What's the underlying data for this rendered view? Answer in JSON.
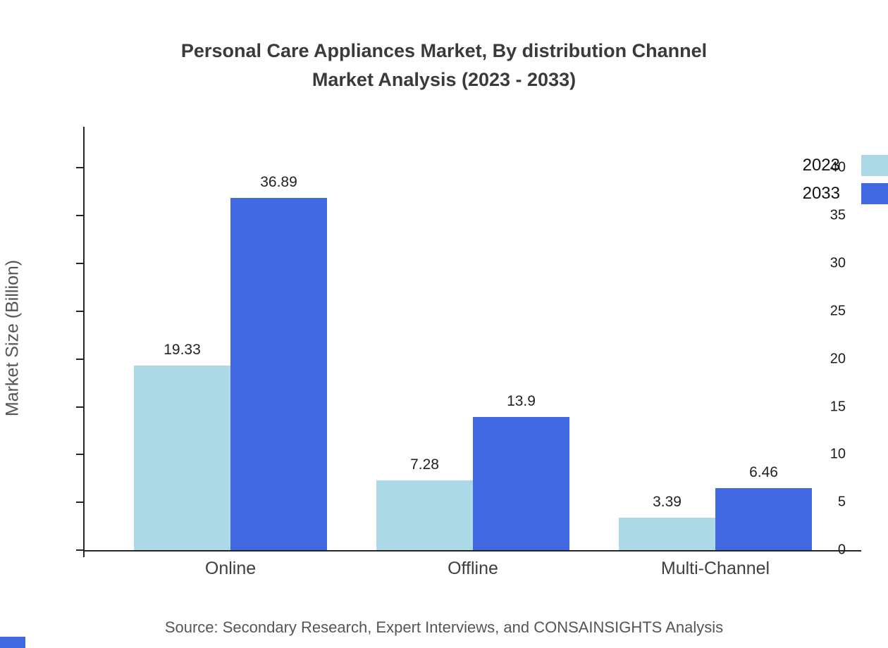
{
  "title": {
    "line1": "Personal Care Appliances Market, By distribution Channel",
    "line2": "Market Analysis (2023 - 2033)"
  },
  "ylabel": "Market Size (Billion)",
  "source": "Source: Secondary Research, Expert Interviews, and CONSAINSIGHTS Analysis",
  "colors": {
    "series_2023": "#ADD8E6",
    "series_2033": "#4169E1",
    "axis": "#262626"
  },
  "chart_data": {
    "type": "bar",
    "title": "Personal Care Appliances Market, By distribution Channel Market Analysis (2023 - 2033)",
    "categories": [
      "Online",
      "Offline",
      "Multi-Channel"
    ],
    "series": [
      {
        "name": "2023",
        "color": "#ADD8E6",
        "values": [
          19.33,
          7.28,
          3.39
        ]
      },
      {
        "name": "2033",
        "color": "#4169E1",
        "values": [
          36.89,
          13.9,
          6.46
        ]
      }
    ],
    "xlabel": "",
    "ylabel": "Market Size (Billion)",
    "yticks": [
      0,
      5,
      10,
      15,
      20,
      25,
      30,
      35,
      40
    ],
    "ylim": [
      0,
      44.3
    ],
    "grid": false,
    "legend_position": "top-right"
  }
}
